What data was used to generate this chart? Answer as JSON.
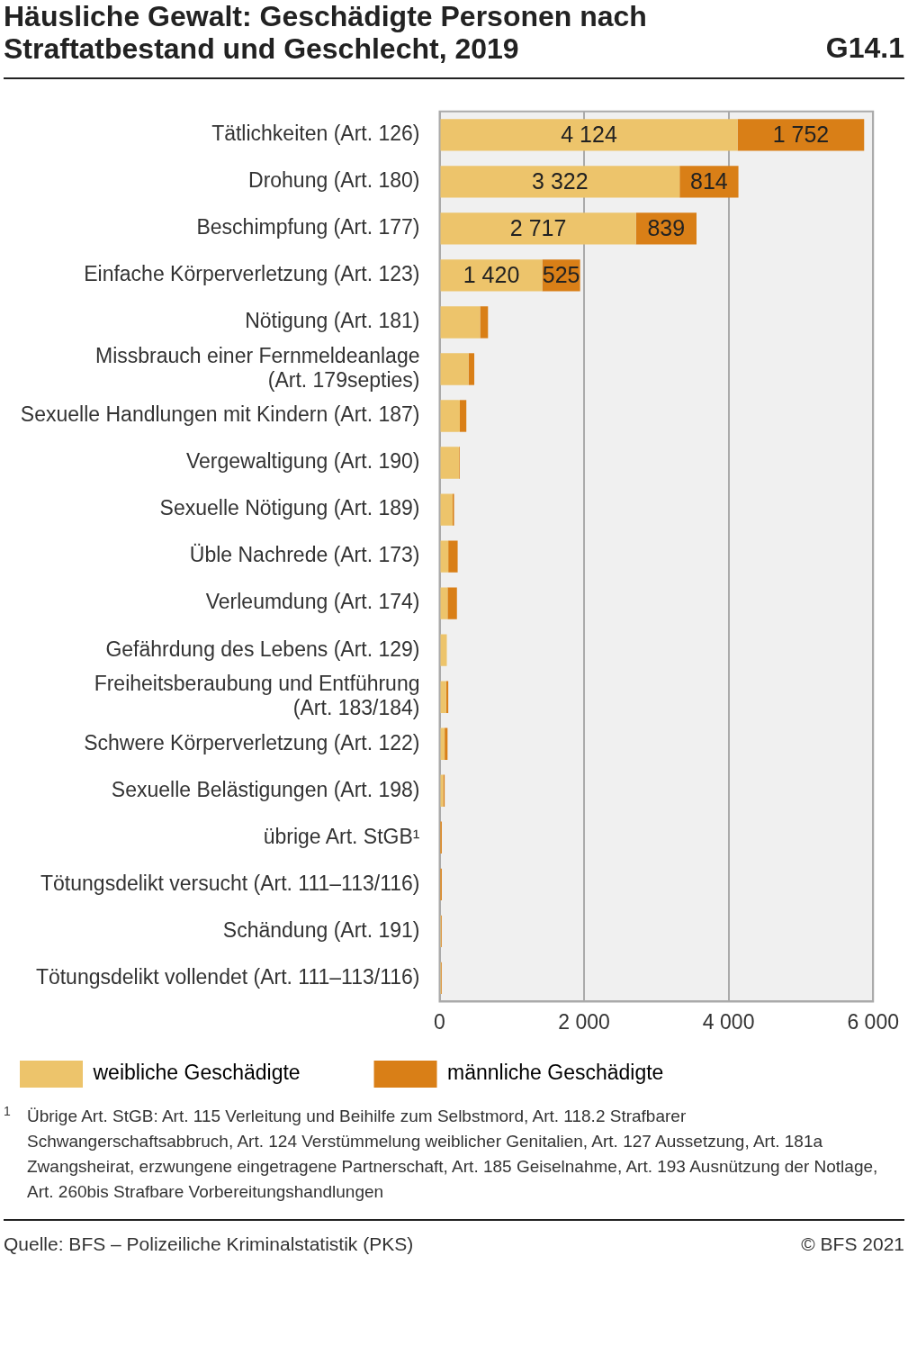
{
  "chart_data": {
    "type": "bar",
    "orientation": "horizontal",
    "stacked": true,
    "title": "Häusliche Gewalt: Geschädigte Personen nach Straftatbestand und Geschlecht, 2019",
    "subtitle": "G14.1",
    "categories": [
      "Tätlichkeiten (Art. 126)",
      "Drohung (Art. 180)",
      "Beschimpfung (Art. 177)",
      "Einfache Körperverletzung (Art. 123)",
      "Nötigung (Art. 181)",
      "Missbrauch einer Fernmeldeanlage (Art. 179septies)",
      "Sexuelle Handlungen mit Kindern (Art. 187)",
      "Vergewaltigung (Art. 190)",
      "Sexuelle Nötigung (Art. 189)",
      "Üble Nachrede (Art. 173)",
      "Verleumdung (Art. 174)",
      "Gefährdung des Lebens (Art. 129)",
      "Freiheitsberaubung und Entführung (Art. 183/184)",
      "Schwere Körperverletzung (Art. 122)",
      "Sexuelle Belästigungen (Art. 198)",
      "übrige Art. StGB¹",
      "Tötungsdelikt versucht (Art. 111–113/116)",
      "Schändung (Art. 191)",
      "Tötungsdelikt vollendet (Art. 111–113/116)"
    ],
    "series": [
      {
        "name": "weibliche Geschädigte",
        "color": "#edc46b",
        "values": [
          4124,
          3322,
          2717,
          1420,
          560,
          400,
          280,
          270,
          180,
          120,
          110,
          100,
          90,
          70,
          50,
          10,
          10,
          20,
          20
        ],
        "value_labels": [
          "4 124",
          "3 322",
          "2 717",
          "1 420",
          null,
          null,
          null,
          null,
          null,
          null,
          null,
          null,
          null,
          null,
          null,
          null,
          null,
          null,
          null
        ]
      },
      {
        "name": "männliche Geschädigte",
        "color": "#d97f17",
        "values": [
          1752,
          814,
          839,
          525,
          110,
          80,
          90,
          10,
          20,
          130,
          130,
          null,
          30,
          40,
          20,
          20,
          20,
          10,
          10
        ],
        "value_labels": [
          "1 752",
          "814",
          "839",
          "525",
          null,
          null,
          null,
          null,
          null,
          null,
          null,
          null,
          null,
          null,
          null,
          null,
          null,
          null,
          null
        ]
      }
    ],
    "xlim": [
      0,
      6000
    ],
    "xticks": [
      0,
      {
        "value": 2000,
        "label": "2 000"
      },
      {
        "value": 4000,
        "label": "4 000"
      },
      {
        "value": 6000,
        "label": "6 000"
      }
    ],
    "grid": "x",
    "legend": "bottom left",
    "annotations": [
      "$^{1}$ Übrige Art. StGB: Art. 115 Verleitung und Beihilfe zum Selbstmord, Art. 118.2 Strafbarer Schwangerschaftsabbruch, Art. 124 Verstümmelung weiblicher Genitalien, Art. 127 Aussetzung, Art. 181a Zwangsheirat, erzwungene eingetragene Partnerschaft, Art. 185 Geiselnahme, Art. 193 Ausnützung der Notlage, Art. 260bis Strafbare Vorbereitungshandlungen",
      "Quelle: BFS – Polizeiliche Kriminalstatistik (PKS)",
      "© BFS 2021"
    ]
  }
}
